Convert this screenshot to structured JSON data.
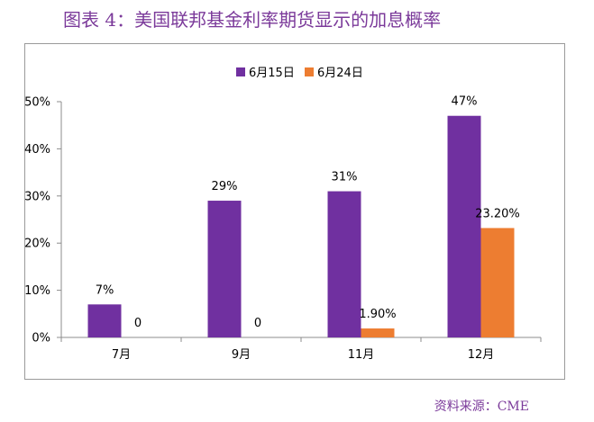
{
  "figure": {
    "title": "图表 4：美国联邦基金利率期货显示的加息概率",
    "source": "资料来源：CME"
  },
  "chart_data": {
    "type": "bar",
    "categories": [
      "7月",
      "9月",
      "11月",
      "12月"
    ],
    "series": [
      {
        "name": "6月15日",
        "color": "#7030a0",
        "values": [
          7,
          29,
          31,
          47
        ],
        "labels": [
          "7%",
          "29%",
          "31%",
          "47%"
        ]
      },
      {
        "name": "6月24日",
        "color": "#ed7d31",
        "values": [
          0,
          0,
          1.9,
          23.2
        ],
        "labels": [
          "0",
          "0",
          "1.90%",
          "23.20%"
        ]
      }
    ],
    "y_ticks": [
      0,
      10,
      20,
      30,
      40,
      50
    ],
    "y_tick_labels": [
      "0%",
      "10%",
      "20%",
      "30%",
      "40%",
      "50%"
    ],
    "ylim": [
      0,
      50
    ],
    "grid": false,
    "legend_position": "top-center"
  }
}
